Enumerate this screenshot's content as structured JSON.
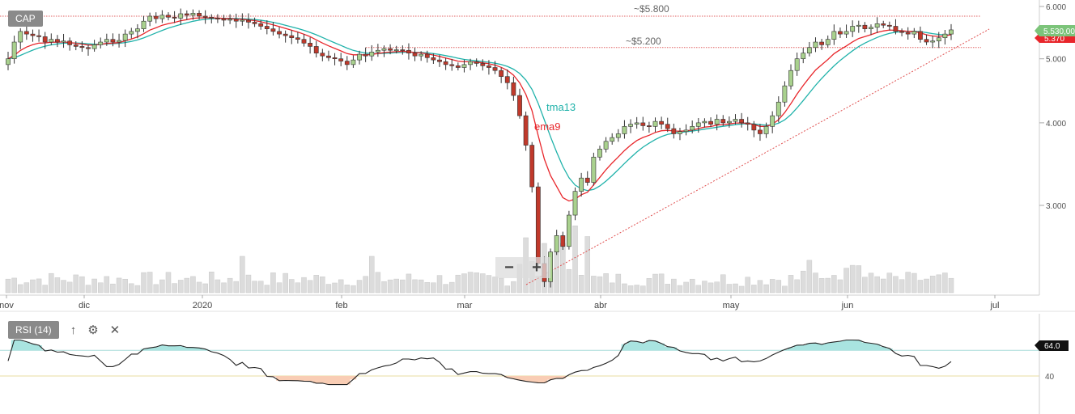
{
  "symbol": "CAP",
  "rsi": {
    "label": "RSI (14)",
    "up_icon": "arrow-up-icon",
    "settings_icon": "gear-icon",
    "close_icon": "close-icon",
    "current_value": "64.0",
    "levels": [
      40
    ],
    "level_labels": [
      "40"
    ],
    "overbought_fill": "#a9e4e0",
    "oversold_fill": "#f9cdb4"
  },
  "annotations": {
    "resistance_high": "~$5.800",
    "resistance_low": "~$5.200",
    "tma_label": "tma13",
    "ema_label": "ema9"
  },
  "price_tags": {
    "last": "5.530,00",
    "other": "5.370"
  },
  "colors": {
    "up_candle": "#a9d18e",
    "down_candle": "#c0392b",
    "tma": "#20b2aa",
    "ema": "#e8262b",
    "volume": "#dcdcdc",
    "trendline": "#e05050",
    "last_tag": "#7cc47a",
    "other_tag": "#e8262b"
  },
  "chart_data": {
    "type": "candlestick",
    "price_axis_ticks": [
      "6.000",
      "5.000",
      "4.000",
      "3.000"
    ],
    "price_axis_values": [
      6.0,
      5.0,
      4.0,
      3.0
    ],
    "scale": "log",
    "x_labels": [
      "nov",
      "dic",
      "2020",
      "feb",
      "mar",
      "abr",
      "may",
      "jun",
      "jul"
    ],
    "resistance_levels": [
      5.8,
      5.2
    ],
    "trendline_points": [
      [
        "2020-03-16",
        2.15
      ],
      [
        "2020-06-29",
        5.15
      ]
    ],
    "close_approx": [
      5.0,
      5.3,
      5.5,
      5.45,
      5.42,
      5.4,
      5.3,
      5.35,
      5.3,
      5.32,
      5.25,
      5.22,
      5.2,
      5.18,
      5.25,
      5.3,
      5.35,
      5.3,
      5.33,
      5.45,
      5.5,
      5.55,
      5.7,
      5.8,
      5.75,
      5.82,
      5.78,
      5.76,
      5.85,
      5.82,
      5.86,
      5.8,
      5.78,
      5.76,
      5.75,
      5.72,
      5.74,
      5.7,
      5.72,
      5.68,
      5.65,
      5.6,
      5.55,
      5.5,
      5.45,
      5.42,
      5.38,
      5.35,
      5.28,
      5.22,
      5.1,
      5.05,
      5.02,
      5.0,
      4.96,
      4.9,
      4.98,
      5.08,
      5.05,
      5.12,
      5.15,
      5.18,
      5.15,
      5.16,
      5.15,
      5.1,
      5.05,
      5.08,
      5.02,
      4.98,
      4.95,
      4.9,
      4.88,
      4.85,
      4.9,
      4.95,
      4.92,
      4.88,
      4.85,
      4.8,
      4.7,
      4.6,
      4.4,
      4.1,
      3.7,
      3.2,
      2.45,
      2.3,
      2.55,
      2.7,
      2.6,
      2.9,
      3.15,
      3.3,
      3.25,
      3.55,
      3.65,
      3.75,
      3.8,
      3.85,
      3.95,
      3.98,
      4.0,
      3.96,
      3.95,
      4.02,
      3.98,
      3.92,
      3.85,
      3.88,
      3.9,
      3.95,
      4.0,
      4.02,
      3.98,
      4.05,
      4.0,
      4.02,
      4.05,
      4.0,
      3.98,
      3.9,
      3.85,
      3.95,
      4.1,
      4.3,
      4.55,
      4.8,
      5.0,
      5.1,
      5.2,
      5.3,
      5.25,
      5.35,
      5.5,
      5.45,
      5.5,
      5.6,
      5.62,
      5.55,
      5.58,
      5.65,
      5.62,
      5.6,
      5.5,
      5.48,
      5.45,
      5.5,
      5.35,
      5.3,
      5.32,
      5.38,
      5.45,
      5.53
    ]
  }
}
